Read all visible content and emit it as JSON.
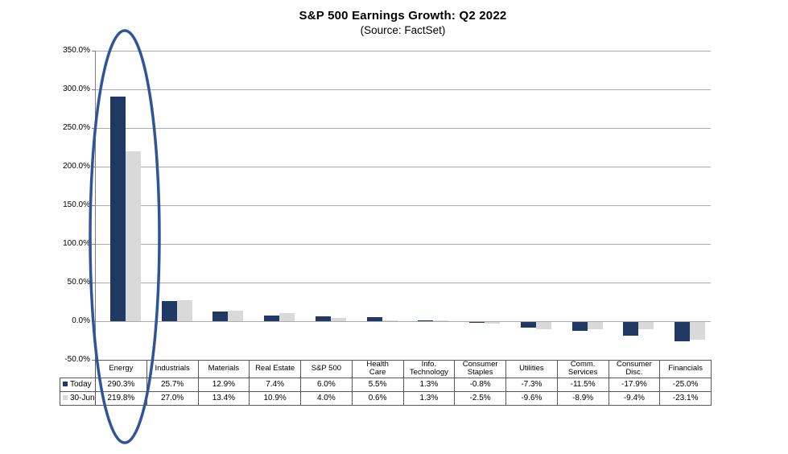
{
  "chart_data": {
    "type": "bar",
    "title": "S&P 500 Earnings Growth: Q2 2022",
    "subtitle": "(Source: FactSet)",
    "categories": [
      "Energy",
      "Industrials",
      "Materials",
      "Real Estate",
      "S&P 500",
      "Health Care",
      "Info. Technology",
      "Consumer Staples",
      "Utilities",
      "Comm. Services",
      "Consumer Disc.",
      "Financials"
    ],
    "category_header_lines": [
      [
        "Energy"
      ],
      [
        "Industrials"
      ],
      [
        "Materials"
      ],
      [
        "Real Estate"
      ],
      [
        "S&P 500"
      ],
      [
        "Health",
        "Care"
      ],
      [
        "Info.",
        "Technology"
      ],
      [
        "Consumer",
        "Staples"
      ],
      [
        "Utilities"
      ],
      [
        "Comm.",
        "Services"
      ],
      [
        "Consumer",
        "Disc."
      ],
      [
        "Financials"
      ]
    ],
    "series": [
      {
        "name": "Today",
        "color": "#1F3864",
        "values": [
          290.3,
          25.7,
          12.9,
          7.4,
          6.0,
          5.5,
          1.3,
          -0.8,
          -7.3,
          -11.5,
          -17.9,
          -25.0
        ]
      },
      {
        "name": "30-Jun",
        "color": "#D9D9D9",
        "values": [
          219.8,
          27.0,
          13.4,
          10.9,
          4.0,
          0.6,
          1.3,
          -2.5,
          -9.6,
          -8.9,
          -9.4,
          -23.1
        ]
      }
    ],
    "ylim": [
      -50,
      350
    ],
    "ytick_step": 50,
    "ytick_labels": [
      "350.0%",
      "300.0%",
      "250.0%",
      "200.0%",
      "150.0%",
      "100.0%",
      "50.0%",
      "0.0%",
      "-50.0%"
    ],
    "value_suffix": "%",
    "grid": true,
    "legend_position": "table-left",
    "annotation": {
      "shape": "ellipse",
      "target_category": "Energy",
      "color": "#2F5597"
    },
    "colors": {
      "bar_today": "#1F3864",
      "bar_30jun": "#D9D9D9",
      "gridline": "#ABABAB",
      "axis": "#808080",
      "table_border": "#595959",
      "text": "#000000",
      "background": "#FFFFFF"
    }
  }
}
